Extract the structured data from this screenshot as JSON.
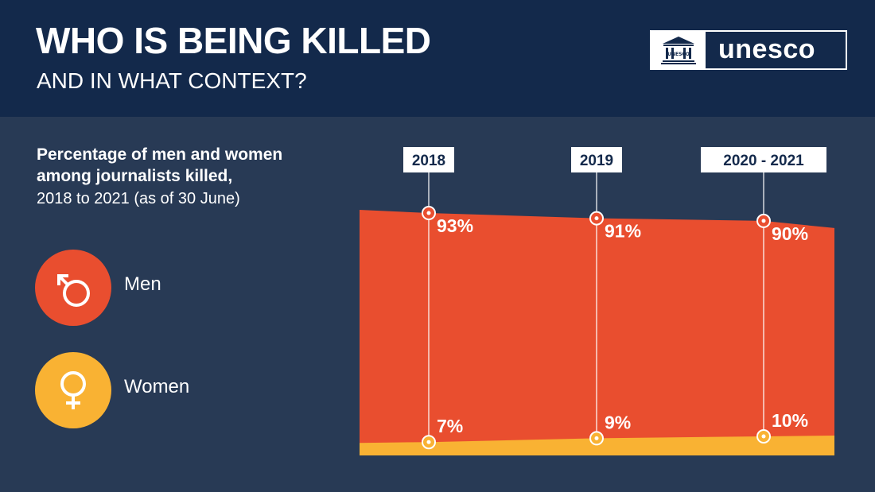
{
  "header": {
    "title": "WHO IS BEING KILLED",
    "subtitle": "AND IN WHAT CONTEXT?",
    "logo_text": "unesco",
    "logo_seal_text": "UNESCO"
  },
  "legend": {
    "items": [
      {
        "label": "Men",
        "color": "#e94e2f",
        "icon": "male-symbol-icon"
      },
      {
        "label": "Women",
        "color": "#f9b233",
        "icon": "female-symbol-icon"
      }
    ]
  },
  "chart_data": {
    "type": "area",
    "title_line1": "Percentage of men and women",
    "title_line2": "among journalists killed,",
    "subtitle": "2018 to 2021 (as of 30 June)",
    "categories": [
      "2018",
      "2019",
      "2020 - 2021"
    ],
    "series": [
      {
        "name": "Men",
        "values": [
          93,
          91,
          90
        ],
        "labels": [
          "93%",
          "91%",
          "90%"
        ],
        "color": "#e94e2f"
      },
      {
        "name": "Women",
        "values": [
          7,
          9,
          10
        ],
        "labels": [
          "7%",
          "9%",
          "10%"
        ],
        "color": "#f9b233"
      }
    ],
    "ylim": [
      0,
      100
    ],
    "grid": false
  }
}
